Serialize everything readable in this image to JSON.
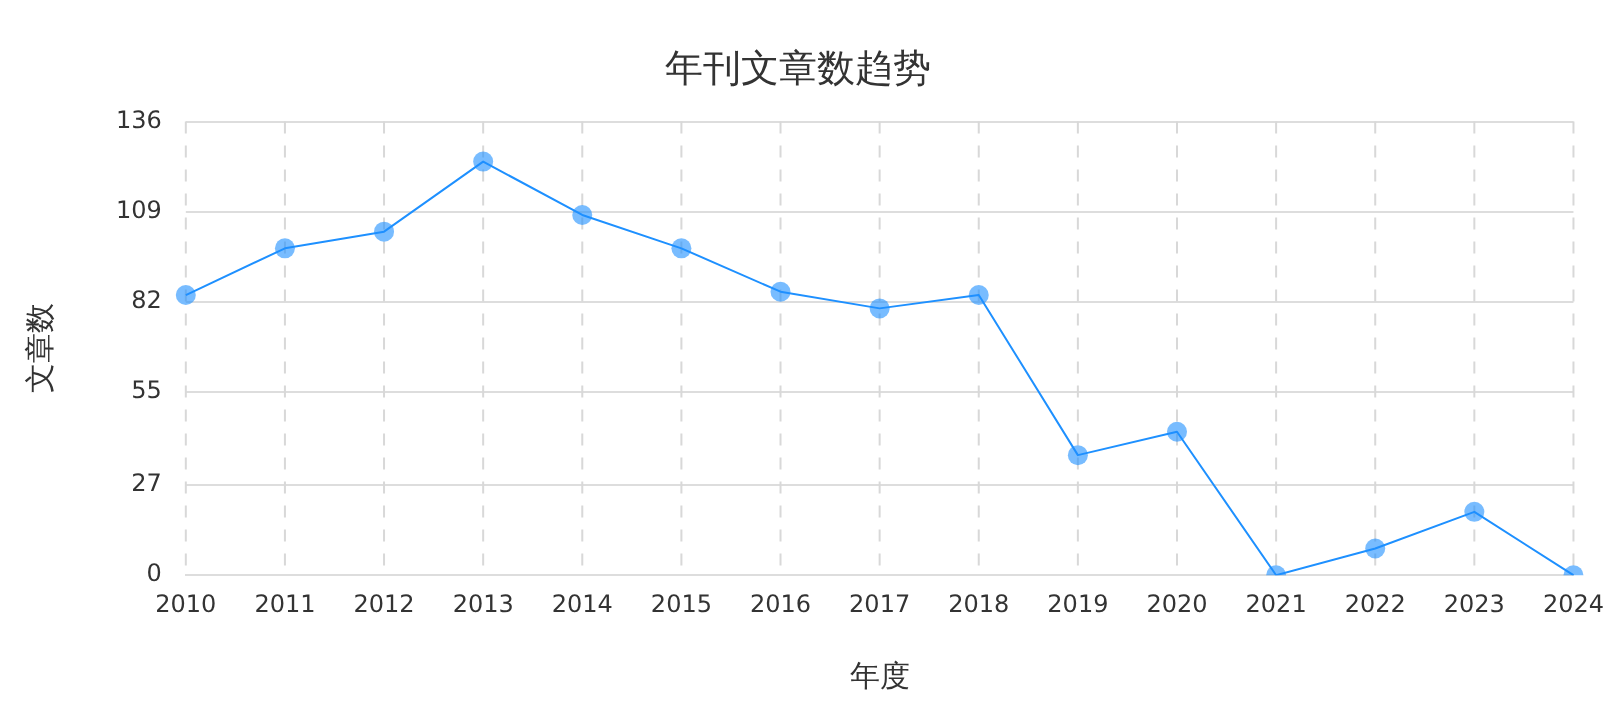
{
  "chart_data": {
    "type": "line",
    "title": "年刊文章数趋势",
    "xlabel": "年度",
    "ylabel": "文章数",
    "categories": [
      "2010",
      "2011",
      "2012",
      "2013",
      "2014",
      "2015",
      "2016",
      "2017",
      "2018",
      "2019",
      "2020",
      "2021",
      "2022",
      "2023",
      "2024"
    ],
    "series": [
      {
        "color": "#1e90ff",
        "values": [
          84,
          98,
          103,
          124,
          108,
          98,
          85,
          80,
          84,
          36,
          43,
          0,
          8,
          19,
          0
        ]
      }
    ],
    "ylim": [
      0,
      136
    ],
    "yticks": [
      0,
      27,
      55,
      82,
      109,
      136
    ],
    "grid": true,
    "marker": "circle",
    "line_style": "solid",
    "legend": false
  }
}
